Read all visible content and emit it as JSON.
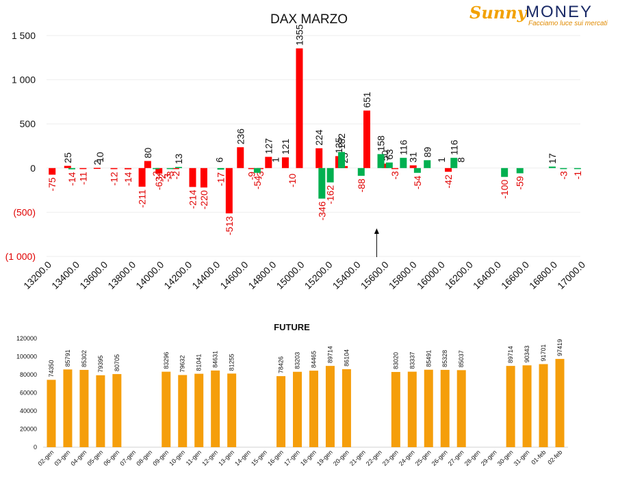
{
  "logo": {
    "brand_a": "Sunny",
    "brand_b": "MONEY",
    "tagline": "Facciamo luce sui mercati"
  },
  "chart_data": [
    {
      "type": "bar",
      "title": "DAX MARZO",
      "x_tick_labels": [
        "13200.0",
        "13400.0",
        "13600.0",
        "13800.0",
        "14000.0",
        "14200.0",
        "14400.0",
        "14600.0",
        "14800.0",
        "15000.0",
        "15200.0",
        "15400.0",
        "15600.0",
        "15800.0",
        "16000.0",
        "16200.0",
        "16400.0",
        "16600.0",
        "16800.0",
        "17000.0"
      ],
      "y_tick_labels": [
        "1 500",
        "1 000",
        "500",
        "0",
        "(500)",
        "(1 000)"
      ],
      "ylim": [
        -1000,
        1500
      ],
      "xlim": [
        13200,
        17000
      ],
      "grid": true,
      "arrow_at": 15550,
      "colors": {
        "negative_label": "#e00000",
        "positive_label": "#111111",
        "red": "#ff0000",
        "green": "#00b050"
      },
      "series": [
        {
          "color": "red",
          "points": [
            [
              13240,
              -75
            ],
            [
              13350,
              25
            ],
            [
              13460,
              -11
            ],
            [
              13560,
              2
            ],
            [
              13680,
              -12
            ],
            [
              13780,
              -14
            ],
            [
              13880,
              -211
            ],
            [
              13920,
              80
            ],
            [
              14000,
              -63
            ],
            [
              14120,
              -2
            ],
            [
              14240,
              -214
            ],
            [
              14320,
              -220
            ],
            [
              14500,
              -513
            ],
            [
              14580,
              236
            ],
            [
              14660,
              -9
            ],
            [
              14720,
              -3
            ],
            [
              14780,
              127
            ],
            [
              14900,
              121
            ],
            [
              15000,
              1355
            ],
            [
              15140,
              224
            ],
            [
              15280,
              135
            ],
            [
              15320,
              23
            ],
            [
              15480,
              651
            ],
            [
              15610,
              50
            ],
            [
              15680,
              -3
            ],
            [
              15810,
              31
            ],
            [
              16060,
              -42
            ]
          ]
        },
        {
          "color": "green",
          "points": [
            [
              13380,
              -14
            ],
            [
              13980,
              -2
            ],
            [
              14080,
              -3
            ],
            [
              14140,
              13
            ],
            [
              14440,
              -17
            ],
            [
              14700,
              -54
            ],
            [
              15160,
              -346
            ],
            [
              15220,
              -162
            ],
            [
              15300,
              182
            ],
            [
              15440,
              -88
            ],
            [
              15580,
              158
            ],
            [
              15640,
              63
            ],
            [
              15740,
              116
            ],
            [
              15840,
              -54
            ],
            [
              15910,
              89
            ],
            [
              16100,
              116
            ],
            [
              16460,
              -100
            ],
            [
              16570,
              -59
            ],
            [
              16800,
              17
            ],
            [
              16880,
              -3
            ],
            [
              16980,
              -1
            ]
          ]
        }
      ],
      "extra_labels": [
        {
          "x": 13580,
          "value": "10"
        },
        {
          "x": 14020,
          "value": "-2"
        },
        {
          "x": 14060,
          "value": "-3"
        },
        {
          "x": 14830,
          "value": "1"
        },
        {
          "x": 14950,
          "value": "-10"
        },
        {
          "x": 16010,
          "value": "1"
        },
        {
          "x": 16150,
          "value": "8"
        },
        {
          "x": 14430,
          "value": "6"
        }
      ]
    },
    {
      "type": "bar",
      "title": "FUTURE",
      "categories": [
        "02-gen",
        "03-gen",
        "04-gen",
        "05-gen",
        "06-gen",
        "07-gen",
        "08-gen",
        "09-gen",
        "10-gen",
        "11-gen",
        "12-gen",
        "13-gen",
        "14-gen",
        "15-gen",
        "16-gen",
        "17-gen",
        "18-gen",
        "19-gen",
        "20-gen",
        "21-gen",
        "22-gen",
        "23-gen",
        "24-gen",
        "25-gen",
        "26-gen",
        "27-gen",
        "28-gen",
        "29-gen",
        "30-gen",
        "31-gen",
        "01-feb",
        "02-feb"
      ],
      "values": [
        74350,
        85791,
        85302,
        79395,
        80705,
        null,
        null,
        83296,
        79632,
        81041,
        84631,
        81255,
        null,
        null,
        78426,
        83203,
        84465,
        89714,
        86104,
        null,
        null,
        83020,
        83337,
        85491,
        85328,
        85037,
        null,
        null,
        89714,
        90343,
        91701,
        97419
      ],
      "y_tick_labels": [
        "0",
        "20000",
        "40000",
        "60000",
        "80000",
        "100000",
        "120000"
      ],
      "ylim": [
        0,
        120000
      ],
      "color": "#f59e0b"
    }
  ]
}
